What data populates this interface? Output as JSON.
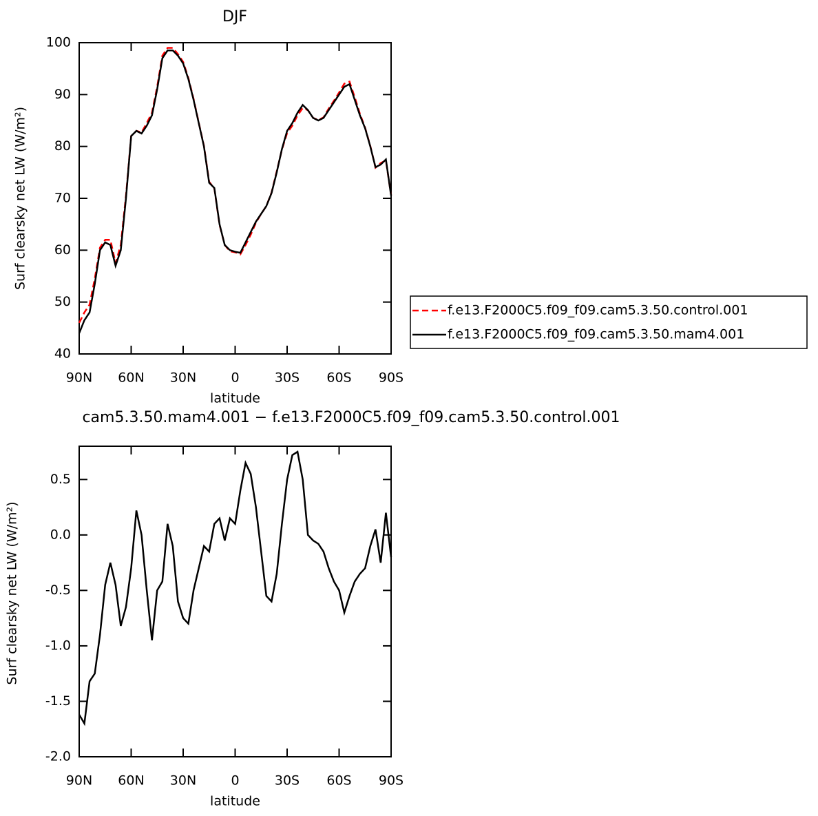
{
  "chart_data": [
    {
      "type": "line",
      "title": "DJF",
      "xlabel": "latitude",
      "ylabel": "Surf clearsky net LW (W/m²)",
      "xlim": [
        90,
        -90
      ],
      "ylim": [
        40,
        100
      ],
      "xticks": [
        {
          "value": 90,
          "label": "90N"
        },
        {
          "value": 60,
          "label": "60N"
        },
        {
          "value": 30,
          "label": "30N"
        },
        0,
        {
          "value": -30,
          "label": "30S"
        },
        {
          "value": -60,
          "label": "60S"
        },
        {
          "value": -90,
          "label": "90S"
        }
      ],
      "yticks": [
        40,
        50,
        60,
        70,
        80,
        90,
        100
      ],
      "legend": "right",
      "x": [
        90,
        87,
        84,
        81,
        78,
        75,
        72,
        69,
        66,
        63,
        60,
        57,
        54,
        51,
        48,
        45,
        42,
        39,
        36,
        33,
        30,
        27,
        24,
        21,
        18,
        15,
        12,
        9,
        6,
        3,
        0,
        -3,
        -6,
        -9,
        -12,
        -15,
        -18,
        -21,
        -24,
        -27,
        -30,
        -33,
        -36,
        -39,
        -42,
        -45,
        -48,
        -51,
        -54,
        -57,
        -60,
        -63,
        -66,
        -69,
        -72,
        -75,
        -78,
        -81,
        -84,
        -87,
        -90
      ],
      "series": [
        {
          "name": "f.e13.F2000C5.f09_f09.cam5.3.50.control.001",
          "color": "#ff0000",
          "dashed": true,
          "values": [
            46,
            48,
            49.5,
            54.5,
            60.5,
            62,
            62,
            57.5,
            61,
            70.5,
            82,
            83,
            82.7,
            84.5,
            86.5,
            91.5,
            97.5,
            99,
            99,
            97.8,
            96.3,
            93.2,
            89.2,
            84.6,
            80.1,
            73.2,
            71.9,
            64.9,
            61,
            59.8,
            59.6,
            59.2,
            61,
            63,
            65.3,
            67,
            68.5,
            71.1,
            75.2,
            79.4,
            82.6,
            84,
            86,
            87.4,
            87,
            85.5,
            85.1,
            85.6,
            87.3,
            88.8,
            90.4,
            92.1,
            92.5,
            89.5,
            86.3,
            83.6,
            80.1,
            75.9,
            76.8,
            77.3,
            70.6
          ]
        },
        {
          "name": "f.e13.F2000C5.f09_f09.cam5.3.50.mam4.001",
          "color": "#000000",
          "dashed": false,
          "values": [
            44,
            46.5,
            48,
            53.5,
            60,
            61.5,
            61,
            57,
            60,
            70,
            82,
            83,
            82.5,
            84,
            86,
            91,
            97,
            98.5,
            98.5,
            97.5,
            96,
            93,
            89,
            84.5,
            80,
            73,
            72,
            65,
            61,
            60,
            59.7,
            59.5,
            61.5,
            63.5,
            65.5,
            67,
            68.5,
            71,
            75,
            79.5,
            83,
            84.5,
            86.5,
            88,
            87,
            85.5,
            85,
            85.5,
            87,
            88.5,
            90,
            91.5,
            92,
            89,
            86,
            83.5,
            80,
            76,
            76.5,
            77.5,
            70.5
          ]
        }
      ]
    },
    {
      "type": "line",
      "title": "cam5.3.50.mam4.001 − f.e13.F2000C5.f09_f09.cam5.3.50.control.001",
      "xlabel": "latitude",
      "ylabel": "Surf clearsky net LW (W/m²)",
      "xlim": [
        90,
        -90
      ],
      "ylim": [
        -2,
        0.8
      ],
      "xticks": [
        {
          "value": 90,
          "label": "90N"
        },
        {
          "value": 60,
          "label": "60N"
        },
        {
          "value": 30,
          "label": "30N"
        },
        0,
        {
          "value": -30,
          "label": "30S"
        },
        {
          "value": -60,
          "label": "60S"
        },
        {
          "value": -90,
          "label": "90S"
        }
      ],
      "yticks": [
        {
          "value": -2,
          "label": "-2.0"
        },
        -1.5,
        {
          "value": -1,
          "label": "-1.0"
        },
        -0.5,
        {
          "value": 0,
          "label": "0.0"
        },
        0.5
      ],
      "x": [
        90,
        87,
        84,
        81,
        78,
        75,
        72,
        69,
        66,
        63,
        60,
        57,
        54,
        51,
        48,
        45,
        42,
        39,
        36,
        33,
        30,
        27,
        24,
        21,
        18,
        15,
        12,
        9,
        6,
        3,
        0,
        -3,
        -6,
        -9,
        -12,
        -15,
        -18,
        -21,
        -24,
        -27,
        -30,
        -33,
        -36,
        -39,
        -42,
        -45,
        -48,
        -51,
        -54,
        -57,
        -60,
        -63,
        -66,
        -69,
        -72,
        -75,
        -78,
        -81,
        -84,
        -87,
        -90
      ],
      "series": [
        {
          "color": "#000000",
          "values": [
            -1.62,
            -1.7,
            -1.32,
            -1.25,
            -0.9,
            -0.45,
            -0.25,
            -0.45,
            -0.82,
            -0.65,
            -0.3,
            0.22,
            0,
            -0.5,
            -0.95,
            -0.5,
            -0.42,
            0.1,
            -0.1,
            -0.6,
            -0.75,
            -0.8,
            -0.5,
            -0.3,
            -0.1,
            -0.15,
            0.1,
            0.15,
            -0.05,
            0.15,
            0.1,
            0.4,
            0.65,
            0.55,
            0.25,
            -0.15,
            -0.55,
            -0.6,
            -0.35,
            0.1,
            0.5,
            0.72,
            0.75,
            0.5,
            0,
            -0.05,
            -0.08,
            -0.15,
            -0.3,
            -0.42,
            -0.5,
            -0.7,
            -0.55,
            -0.42,
            -0.35,
            -0.3,
            -0.1,
            0.05,
            -0.25,
            0.2,
            -0.2
          ]
        }
      ]
    }
  ]
}
